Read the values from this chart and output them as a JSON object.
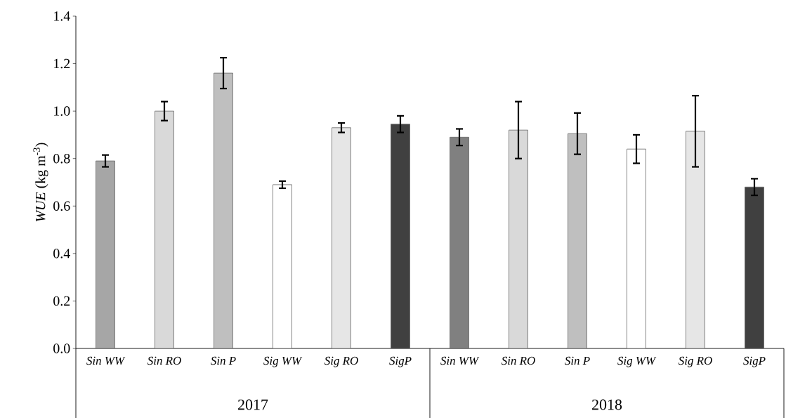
{
  "chart_data": {
    "type": "bar",
    "ylabel": "*WUE* (kg m$^{-3}$)",
    "categories": [
      "Sin WW",
      "Sin RO",
      "Sin P",
      "Sig WW",
      "Sig RO",
      "SigP",
      "Sin WW",
      "Sin RO",
      "Sin P",
      "Sig WW",
      "Sig RO",
      "SigP"
    ],
    "values": [
      0.79,
      1.0,
      1.16,
      0.69,
      0.93,
      0.945,
      0.89,
      0.92,
      0.905,
      0.84,
      0.915,
      0.68
    ],
    "errors": [
      0.025,
      0.04,
      0.065,
      0.015,
      0.02,
      0.035,
      0.035,
      0.12,
      0.087,
      0.06,
      0.15,
      0.035
    ],
    "colors": [
      "#a6a6a6",
      "#d9d9d9",
      "#bfbfbf",
      "#ffffff",
      "#e6e6e6",
      "#404040",
      "#808080",
      "#d9d9d9",
      "#bfbfbf",
      "#ffffff",
      "#e6e6e6",
      "#404040"
    ],
    "ylim": [
      0,
      1.4
    ],
    "yticks": [
      {
        "value": 0,
        "label": "0.0"
      },
      0.2,
      0.4,
      0.6,
      0.8,
      {
        "value": 1,
        "label": "1.0"
      },
      1.2,
      1.4
    ],
    "annotations": [
      "2017",
      "2018"
    ],
    "grid": false
  }
}
